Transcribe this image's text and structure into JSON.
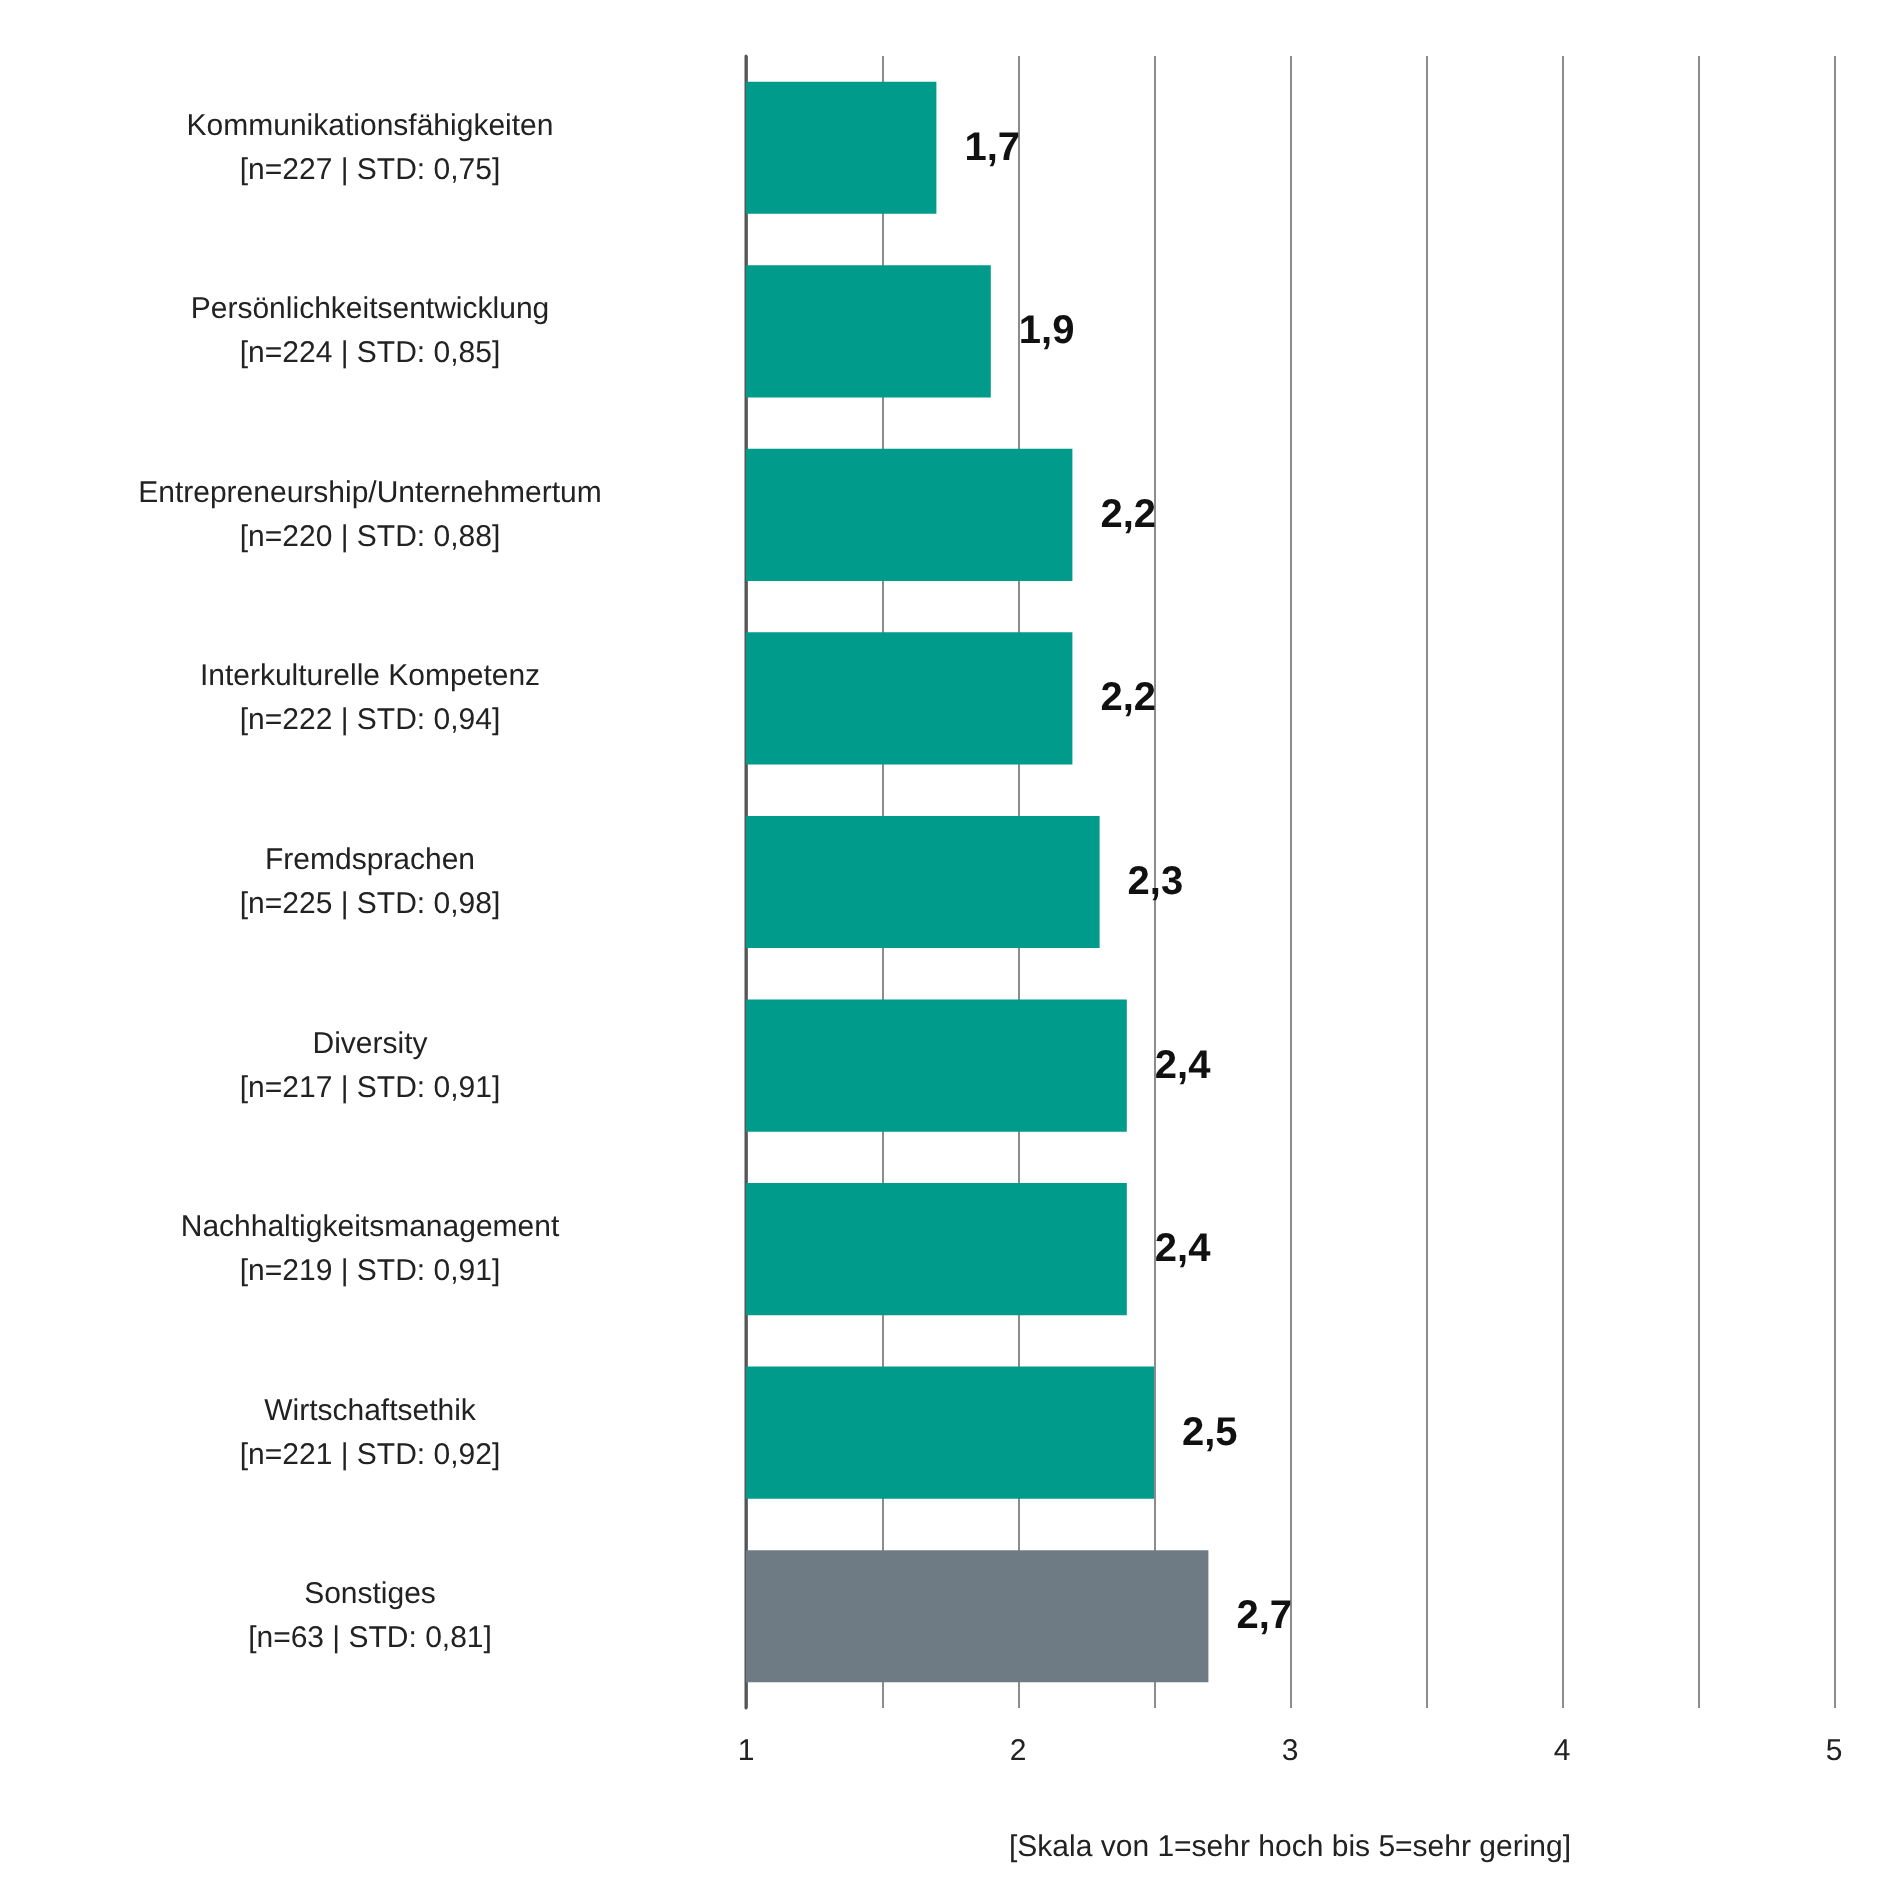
{
  "chart_data": {
    "type": "bar",
    "orientation": "horizontal",
    "xlabel": "[Skala von 1=sehr hoch bis 5=sehr gering]",
    "categories": [
      "Kommunikationsfähigkeiten\n[n=227 | STD: 0,75]",
      "Persönlichkeitsentwicklung\n[n=224 | STD: 0,85]",
      "Entrepreneurship/Unternehmertum\n[n=220 | STD: 0,88]",
      "Interkulturelle Kompetenz\n[n=222 | STD: 0,94]",
      "Fremdsprachen\n[n=225 | STD: 0,98]",
      "Diversity\n[n=217 | STD: 0,91]",
      "Nachhaltigkeitsmanagement\n[n=219 | STD: 0,91]",
      "Wirtschaftsethik\n[n=221 | STD: 0,92]",
      "Sonstiges\n[n=63 | STD: 0,81]"
    ],
    "values": [
      1.7,
      1.9,
      2.2,
      2.2,
      2.3,
      2.4,
      2.4,
      2.5,
      2.7
    ],
    "value_labels": [
      "1,7",
      "1,9",
      "2,2",
      "2,2",
      "2,3",
      "2,4",
      "2,4",
      "2,5",
      "2,7"
    ],
    "colors": [
      "#009b8a",
      "#009b8a",
      "#009b8a",
      "#009b8a",
      "#009b8a",
      "#009b8a",
      "#009b8a",
      "#009b8a",
      "#6e7b85"
    ],
    "xlim": [
      1,
      5
    ],
    "xticks": [
      1,
      {
        "value": 1.5,
        "label": null
      },
      2,
      {
        "value": 2.5,
        "label": null
      },
      3,
      {
        "value": 3.5,
        "label": null
      },
      4,
      {
        "value": 4.5,
        "label": null
      },
      5
    ],
    "grid": "x"
  }
}
